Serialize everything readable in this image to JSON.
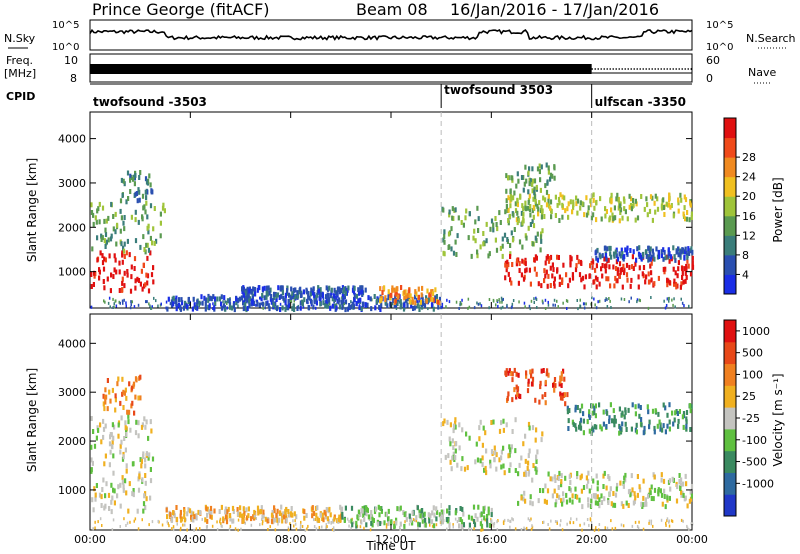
{
  "header": {
    "station": "Prince George (fitACF)",
    "beam": "Beam 08",
    "dates": "16/Jan/2016 - 17/Jan/2016"
  },
  "chart_data": [
    {
      "id": "noise",
      "type": "line",
      "left_label": "N.Sky",
      "right_label": "N.Search",
      "ticks": [
        "10^5",
        "10^0"
      ],
      "values_hint": "log noise, roughly 10^0.5 to 10^3"
    },
    {
      "id": "freq_nave",
      "type": "line",
      "left_label_top": "Freq.",
      "left_label_bottom": "[MHz]",
      "right_label": "Nave",
      "left_ticks": [
        "10",
        "8"
      ],
      "right_ticks": [
        "60",
        "0"
      ],
      "segments": [
        {
          "start_hour": 0,
          "end_hour": 20.0,
          "style": "solid"
        },
        {
          "start_hour": 20.0,
          "end_hour": 24,
          "style": "dotted"
        }
      ]
    },
    {
      "id": "cpid",
      "type": "table",
      "label": "CPID",
      "programs": [
        {
          "name": "twofsound -3503",
          "start_hour": 0,
          "end_hour": 14.0
        },
        {
          "name": "twofsound 3503",
          "start_hour": 14.0,
          "end_hour": 20.0
        },
        {
          "name": "ulfscan -3350",
          "start_hour": 20.0,
          "end_hour": 24
        }
      ]
    },
    {
      "id": "power",
      "type": "heatmap",
      "ylabel": "Slant Range [km]",
      "ylim": [
        180,
        4600
      ],
      "yticks": [
        1000,
        2000,
        3000,
        4000
      ],
      "colorbar_label": "Power [dB]",
      "colorbar_ticks": [
        "4",
        "8",
        "12",
        "16",
        "20",
        "24",
        "28"
      ],
      "colors": [
        "#1a2ee6",
        "#2a4fb0",
        "#3a7d7a",
        "#5a9a50",
        "#9fc43a",
        "#f0c020",
        "#f08a20",
        "#f04a1a",
        "#e01010"
      ],
      "regions": [
        {
          "t0": 0.0,
          "t1": 2.5,
          "r0": 600,
          "r1": 1500,
          "level": 8
        },
        {
          "t0": 0.0,
          "t1": 3.0,
          "r0": 1500,
          "r1": 2600,
          "level": 3
        },
        {
          "t0": 1.0,
          "t1": 2.5,
          "r0": 2600,
          "r1": 3300,
          "level": 2
        },
        {
          "t0": 3.0,
          "t1": 14.0,
          "r0": 200,
          "r1": 500,
          "level": 1
        },
        {
          "t0": 6.0,
          "t1": 11.0,
          "r0": 500,
          "r1": 700,
          "level": 1
        },
        {
          "t0": 11.5,
          "t1": 14.0,
          "r0": 350,
          "r1": 700,
          "level": 6
        },
        {
          "t0": 14.0,
          "t1": 18.0,
          "r0": 1400,
          "r1": 2500,
          "level": 3
        },
        {
          "t0": 16.5,
          "t1": 24.0,
          "r0": 700,
          "r1": 1400,
          "level": 8
        },
        {
          "t0": 16.5,
          "t1": 24.0,
          "r0": 2200,
          "r1": 2800,
          "level": 4
        },
        {
          "t0": 16.5,
          "t1": 18.5,
          "r0": 2800,
          "r1": 3500,
          "level": 3
        },
        {
          "t0": 20.0,
          "t1": 24.0,
          "r0": 1300,
          "r1": 1600,
          "level": 1
        }
      ]
    },
    {
      "id": "velocity",
      "type": "heatmap",
      "xlabel": "Time UT",
      "ylabel": "Slant Range [km]",
      "ylim": [
        180,
        4600
      ],
      "yticks": [
        1000,
        2000,
        3000,
        4000
      ],
      "xticks": [
        "00:00",
        "04:00",
        "08:00",
        "12:00",
        "16:00",
        "20:00",
        "00:00"
      ],
      "colorbar_label": "Velocity [m s⁻¹]",
      "colorbar_ticks": [
        "1000",
        "500",
        "100",
        "25",
        "-25",
        "-100",
        "-500",
        "-1000"
      ],
      "colors": [
        "#2038c8",
        "#2e6aa0",
        "#3a8a60",
        "#5fc040",
        "#c4c4c0",
        "#f0b020",
        "#f08020",
        "#e84818",
        "#e01010"
      ],
      "regions": [
        {
          "t0": 0.0,
          "t1": 2.5,
          "r0": 600,
          "r1": 1600,
          "level": 4
        },
        {
          "t0": 0.0,
          "t1": 2.5,
          "r0": 1600,
          "r1": 2600,
          "level": 4
        },
        {
          "t0": 0.5,
          "t1": 2.0,
          "r0": 2600,
          "r1": 3400,
          "level": 6
        },
        {
          "t0": 3.0,
          "t1": 10.0,
          "r0": 400,
          "r1": 700,
          "level": 5
        },
        {
          "t0": 10.0,
          "t1": 16.0,
          "r0": 300,
          "r1": 700,
          "level": 3
        },
        {
          "t0": 14.0,
          "t1": 18.0,
          "r0": 1400,
          "r1": 2500,
          "level": 4
        },
        {
          "t0": 17.0,
          "t1": 24.0,
          "r0": 700,
          "r1": 1400,
          "level": 4
        },
        {
          "t0": 16.5,
          "t1": 19.0,
          "r0": 2800,
          "r1": 3500,
          "level": 7
        },
        {
          "t0": 19.0,
          "t1": 24.0,
          "r0": 2200,
          "r1": 2800,
          "level": 2
        }
      ]
    }
  ]
}
